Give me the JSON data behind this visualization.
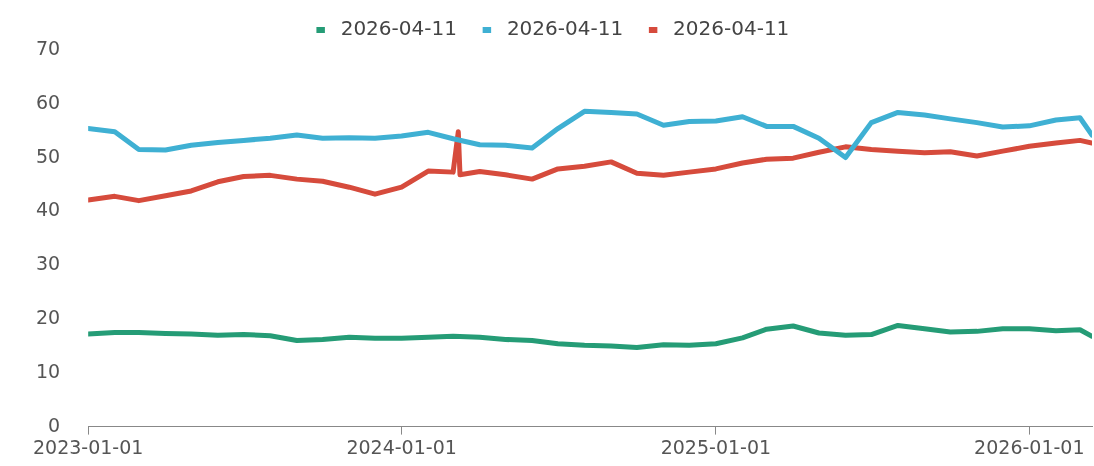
{
  "chart_data": {
    "type": "line",
    "x": [
      "2023-01-01",
      "2023-02-01",
      "2023-03-01",
      "2023-04-01",
      "2023-05-01",
      "2023-06-01",
      "2023-07-01",
      "2023-08-01",
      "2023-09-01",
      "2023-10-01",
      "2023-11-01",
      "2023-12-01",
      "2024-01-01",
      "2024-02-01",
      "2024-03-01",
      "2024-04-01",
      "2024-05-01",
      "2024-06-01",
      "2024-07-01",
      "2024-08-01",
      "2024-09-01",
      "2024-10-01",
      "2024-11-01",
      "2024-12-01",
      "2025-01-01",
      "2025-02-01",
      "2025-03-01",
      "2025-04-01",
      "2025-05-01",
      "2025-06-01",
      "2025-07-01",
      "2025-08-01",
      "2025-09-01",
      "2025-10-01",
      "2025-11-01",
      "2025-12-01",
      "2026-01-01",
      "2026-02-01",
      "2026-03-01",
      "2026-03-15"
    ],
    "series": [
      {
        "name": "2026-04-11",
        "color": "#259c76",
        "values": [
          17.2,
          17.5,
          17.5,
          17.3,
          17.2,
          17,
          17.1,
          16.9,
          16,
          16.2,
          16.6,
          16.4,
          16.4,
          16.6,
          16.8,
          16.6,
          16.2,
          16,
          15.4,
          15.1,
          15,
          14.7,
          15.2,
          15.1,
          15.4,
          16.5,
          18.1,
          18.7,
          17.4,
          17,
          17.1,
          18.8,
          18.2,
          17.6,
          17.7,
          18.2,
          18.2,
          17.8,
          18,
          16.8
        ]
      },
      {
        "name": "2026-04-11",
        "color": "#3fb0d3",
        "values": [
          55.4,
          54.8,
          51.5,
          51.4,
          52.3,
          52.8,
          53.2,
          53.6,
          54.2,
          53.6,
          53.7,
          53.6,
          54,
          54.7,
          53.5,
          52.4,
          52.3,
          51.8,
          55.4,
          58.6,
          58.4,
          58.1,
          56,
          56.7,
          56.8,
          57.6,
          55.8,
          55.8,
          53.6,
          50,
          56.5,
          58.4,
          57.9,
          57.2,
          56.5,
          55.7,
          55.9,
          57,
          57.4,
          54.2
        ]
      },
      {
        "name": "2026-04-11",
        "color": "#d64b3c",
        "x": [
          "2023-01-01",
          "2023-02-01",
          "2023-03-01",
          "2023-04-01",
          "2023-05-01",
          "2023-06-01",
          "2023-07-01",
          "2023-08-01",
          "2023-09-01",
          "2023-10-01",
          "2023-11-01",
          "2023-12-01",
          "2024-01-01",
          "2024-02-01",
          "2024-03-01",
          "2024-03-07",
          "2024-03-09",
          "2024-04-01",
          "2024-05-01",
          "2024-06-01",
          "2024-07-01",
          "2024-08-01",
          "2024-09-01",
          "2024-10-01",
          "2024-11-01",
          "2024-12-01",
          "2025-01-01",
          "2025-02-01",
          "2025-03-01",
          "2025-04-01",
          "2025-05-01",
          "2025-06-01",
          "2025-07-01",
          "2025-08-01",
          "2025-09-01",
          "2025-10-01",
          "2025-11-01",
          "2025-12-01",
          "2026-01-01",
          "2026-02-01",
          "2026-03-01",
          "2026-03-15"
        ],
        "values": [
          42.1,
          42.8,
          42,
          42.9,
          43.8,
          45.5,
          46.5,
          46.7,
          46,
          45.6,
          44.5,
          43.2,
          44.5,
          47.5,
          47.3,
          54.8,
          46.8,
          47.4,
          46.8,
          46,
          47.9,
          48.4,
          49.2,
          47.1,
          46.7,
          47.3,
          47.9,
          49,
          49.7,
          49.9,
          51,
          52,
          51.5,
          51.2,
          50.9,
          51.1,
          50.3,
          51.2,
          52.1,
          52.7,
          53.2,
          52.7
        ]
      }
    ],
    "xlim": [
      "2023-01-01",
      "2026-03-15"
    ],
    "xticks": [
      "2023-01-01",
      "2024-01-01",
      "2025-01-01",
      "2026-01-01"
    ],
    "ylim": [
      0,
      70
    ],
    "yticks": [
      0,
      10,
      20,
      30,
      40,
      50,
      60,
      70
    ],
    "grid": false,
    "legend": "top",
    "marker": "none",
    "line_style": "solid"
  }
}
